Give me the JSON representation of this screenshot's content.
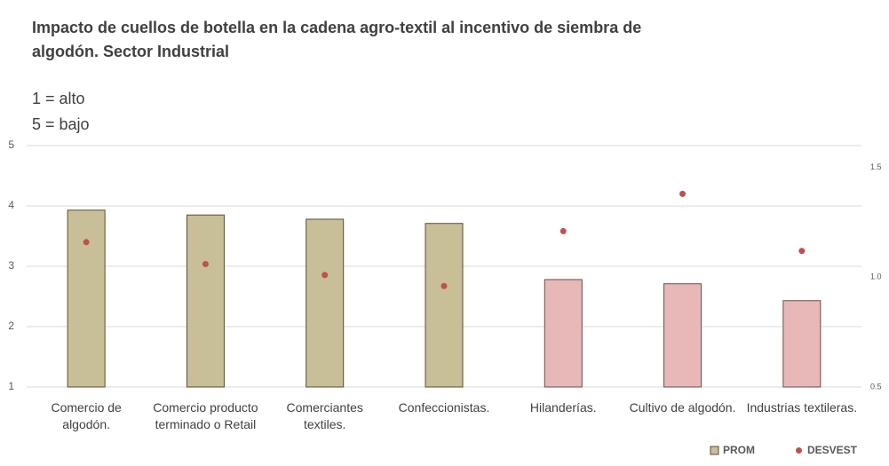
{
  "chart_data": {
    "type": "bar",
    "title": "Impacto de cuellos de botella en la cadena agro-textil al incentivo de siembra de algodón. Sector Industrial",
    "subtitle": [
      "1 = alto",
      "5 = bajo"
    ],
    "categories": [
      "Comercio de algodón.",
      "Comercio producto terminado o Retail",
      "Comerciantes textiles.",
      "Confeccionistas.",
      "Hilanderías.",
      "Cultivo de algodón.",
      "Industrias textileras."
    ],
    "series": [
      {
        "name": "PROM",
        "type": "bar",
        "color": "#c8bf98",
        "colors": [
          "#c8bf98",
          "#c8bf98",
          "#c8bf98",
          "#c8bf98",
          "#e8b8b8",
          "#e8b8b8",
          "#e8b8b8"
        ],
        "values": [
          3.93,
          3.85,
          3.78,
          3.71,
          2.78,
          2.71,
          2.43
        ]
      },
      {
        "name": "DESVEST",
        "type": "scatter",
        "axis": "y2",
        "color": "#c0504d",
        "values": [
          1.16,
          1.06,
          1.01,
          0.96,
          1.21,
          1.38,
          1.12
        ]
      }
    ],
    "ylim": [
      1,
      5
    ],
    "yticks": [
      1,
      2,
      3,
      4,
      5
    ],
    "y2lim": [
      0.5,
      1.6
    ],
    "y2ticks": [
      {
        "value": 0.5,
        "label": "0.5"
      },
      {
        "value": 1,
        "label": "1.0"
      },
      {
        "value": 1.5,
        "label": "1.5"
      }
    ],
    "grid": true,
    "legend": "bottom-right"
  }
}
